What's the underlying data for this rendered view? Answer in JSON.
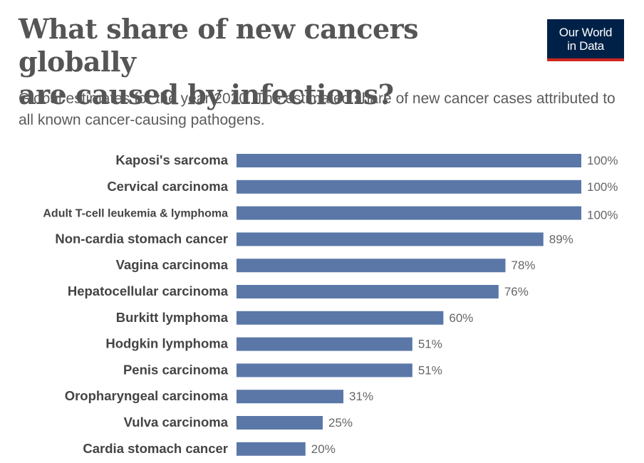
{
  "header": {
    "title_line1": "What share of new cancers globally",
    "title_line2": "are caused by infections?",
    "subtitle": "Global estimates for the year 2020. The estimated share of new cancer cases attributed to all known cancer-causing pathogens.",
    "logo_line1": "Our World",
    "logo_line2": "in Data"
  },
  "colors": {
    "bar": "#5b77a8",
    "logo_bg": "#002147",
    "logo_accent": "#ce261e"
  },
  "chart_data": {
    "type": "bar",
    "orientation": "horizontal",
    "categories": [
      "Kaposi's sarcoma",
      "Cervical carcinoma",
      "Adult T-cell leukemia & lymphoma",
      "Non-cardia stomach cancer",
      "Vagina carcinoma",
      "Hepatocellular carcinoma",
      "Burkitt lymphoma",
      "Hodgkin lymphoma",
      "Penis carcinoma",
      "Oropharyngeal carcinoma",
      "Vulva carcinoma",
      "Cardia stomach cancer"
    ],
    "values": [
      100,
      100,
      100,
      89,
      78,
      76,
      60,
      51,
      51,
      31,
      25,
      20
    ],
    "value_labels": [
      "100%",
      "100%",
      "100%",
      "89%",
      "78%",
      "76%",
      "60%",
      "51%",
      "51%",
      "31%",
      "25%",
      "20%"
    ],
    "xlim": [
      0,
      100
    ],
    "grid": false
  }
}
